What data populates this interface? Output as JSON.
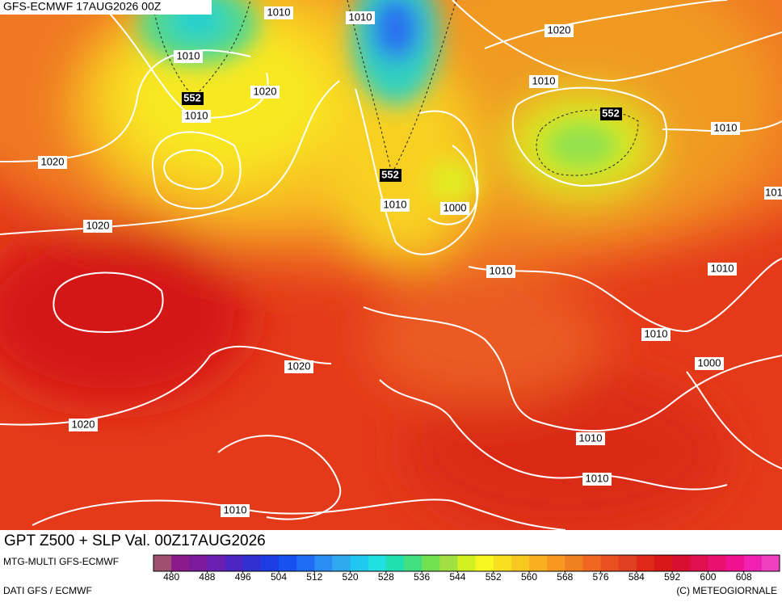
{
  "header": {
    "title": "GFS-ECMWF 17AUG2026 00Z"
  },
  "map": {
    "title": "GPT Z500 + SLP Val. 00Z17AUG2026",
    "isobar_labels": [
      "1010",
      "1010",
      "1020",
      "1010",
      "552",
      "1020",
      "1010",
      "1010",
      "552",
      "1010",
      "1020",
      "552",
      "1010",
      "1000",
      "101",
      "1020",
      "1010",
      "1010",
      "1010",
      "1020",
      "1000",
      "1020",
      "1010",
      "1010",
      "1010"
    ]
  },
  "legend": {
    "source": "MTG-MULTI GFS-ECMWF",
    "range": [
      476,
      616
    ],
    "ticks": [
      480,
      488,
      496,
      504,
      512,
      520,
      528,
      536,
      544,
      552,
      560,
      568,
      576,
      584,
      592,
      600,
      608
    ],
    "colors": [
      "#a0506e",
      "#8b1a8b",
      "#7d1a9c",
      "#6a1fb0",
      "#4b25c0",
      "#3030d0",
      "#1e3ce6",
      "#1650f0",
      "#1e6cf5",
      "#2a8cf5",
      "#30a8f0",
      "#20c8f0",
      "#20e0e0",
      "#20e0b0",
      "#40e080",
      "#70e050",
      "#a0e040",
      "#d0f020",
      "#f8f820",
      "#f8e020",
      "#f8c820",
      "#f8b020",
      "#f89820",
      "#f08020",
      "#f06820",
      "#e85020",
      "#e04020",
      "#e02818",
      "#d81818",
      "#d81030",
      "#e01050",
      "#e81070",
      "#f01090",
      "#f020b0",
      "#f040c0"
    ]
  },
  "footer": {
    "data_source": "DATI GFS / ECMWF",
    "copyright": "(C) METEOGIORNALE"
  }
}
